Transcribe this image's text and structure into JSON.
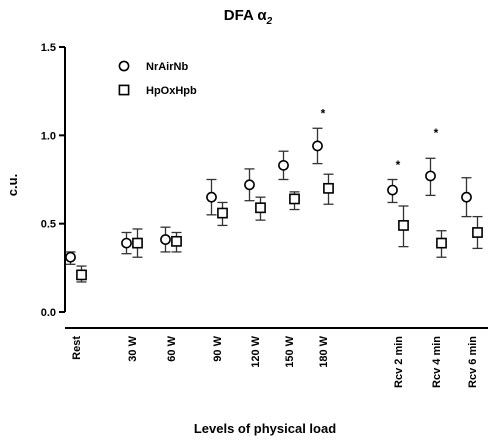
{
  "chart_data": {
    "type": "scatter",
    "title": "DFA α",
    "title_subscript": "2",
    "xlabel": "Levels of physical load",
    "ylabel": "c.u.",
    "ylim": [
      0,
      1.5
    ],
    "yticks": [
      "0.0",
      "0.5",
      "1.0",
      "1.5"
    ],
    "categories": [
      "Rest",
      "30 W",
      "60 W",
      "90 W",
      "120 W",
      "150 W",
      "180 W",
      "Rcv 2 min",
      "Rcv 4 min",
      "Rcv 6 min"
    ],
    "series": [
      {
        "name": "NrAirNb",
        "marker": "circle",
        "values": [
          0.31,
          0.39,
          0.41,
          0.65,
          0.72,
          0.83,
          0.94,
          0.69,
          0.77,
          0.65
        ],
        "err_low": [
          0.27,
          0.33,
          0.34,
          0.55,
          0.63,
          0.75,
          0.84,
          0.62,
          0.66,
          0.54
        ],
        "err_high": [
          0.34,
          0.45,
          0.48,
          0.75,
          0.81,
          0.91,
          1.04,
          0.75,
          0.87,
          0.76
        ]
      },
      {
        "name": "HpOxHpb",
        "marker": "square",
        "values": [
          0.21,
          0.39,
          0.4,
          0.56,
          0.59,
          0.64,
          0.7,
          0.49,
          0.39,
          0.45
        ],
        "err_low": [
          0.17,
          0.31,
          0.34,
          0.49,
          0.52,
          0.58,
          0.61,
          0.37,
          0.31,
          0.36
        ],
        "err_high": [
          0.26,
          0.47,
          0.45,
          0.62,
          0.65,
          0.68,
          0.78,
          0.6,
          0.46,
          0.54
        ]
      }
    ],
    "annotations": [
      {
        "category": "180 W",
        "text": "*",
        "y": 1.14
      },
      {
        "category": "Rcv 2 min",
        "text": "*",
        "y": 0.85
      },
      {
        "category": "Rcv 4 min",
        "text": "*",
        "y": 1.03
      }
    ],
    "legend_position": "top-left",
    "grid": false
  }
}
